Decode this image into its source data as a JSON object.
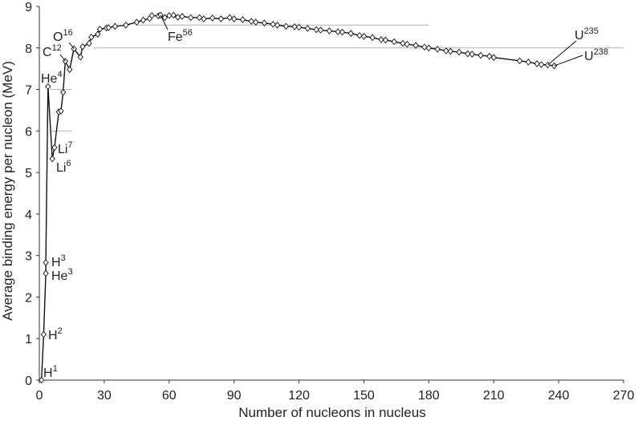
{
  "chart_data": {
    "type": "line",
    "title": "",
    "xlabel": "Number of nucleons in nucleus",
    "ylabel": "Average binding energy per nucleon (MeV)",
    "xlim": [
      0,
      270
    ],
    "ylim": [
      0,
      9
    ],
    "xticks": [
      "0",
      "30",
      "60",
      "90",
      "120",
      "150",
      "180",
      "210",
      "240",
      "270"
    ],
    "yticks": [
      "0",
      "1",
      "2",
      "3",
      "4",
      "5",
      "6",
      "7",
      "8",
      "9"
    ],
    "grid": "horizontal",
    "reference_lines": [
      {
        "y": 8.55,
        "x_from": 45,
        "x_to": 180
      },
      {
        "y": 8.0,
        "x_from": 25,
        "x_to": 270
      },
      {
        "y": 7.0,
        "x_from": 5,
        "x_to": 15
      },
      {
        "y": 6.0,
        "x_from": 5,
        "x_to": 15
      }
    ],
    "series": [
      {
        "x": [
          1,
          2,
          3,
          3,
          4,
          6,
          7,
          9,
          10,
          11,
          12,
          14,
          16,
          19,
          20,
          23,
          24,
          27,
          28,
          31,
          32,
          35,
          40,
          45,
          48,
          51,
          52,
          55,
          56,
          58,
          60,
          62,
          64,
          66,
          70,
          74,
          76,
          80,
          84,
          88,
          90,
          94,
          98,
          100,
          104,
          108,
          110,
          114,
          118,
          120,
          124,
          128,
          130,
          134,
          138,
          140,
          144,
          148,
          150,
          154,
          158,
          160,
          164,
          168,
          170,
          174,
          178,
          180,
          184,
          188,
          190,
          194,
          198,
          200,
          204,
          208,
          210,
          222,
          226,
          230,
          232,
          235,
          238
        ],
        "y": [
          0,
          1.1,
          2.57,
          2.83,
          7.07,
          5.33,
          5.6,
          6.46,
          6.48,
          6.93,
          7.68,
          7.48,
          7.98,
          7.78,
          8.03,
          8.11,
          8.26,
          8.33,
          8.45,
          8.48,
          8.49,
          8.52,
          8.55,
          8.62,
          8.67,
          8.71,
          8.78,
          8.77,
          8.79,
          8.73,
          8.78,
          8.79,
          8.74,
          8.76,
          8.73,
          8.73,
          8.7,
          8.72,
          8.7,
          8.73,
          8.7,
          8.68,
          8.64,
          8.62,
          8.6,
          8.57,
          8.55,
          8.52,
          8.51,
          8.5,
          8.47,
          8.44,
          8.43,
          8.41,
          8.39,
          8.38,
          8.35,
          8.3,
          8.28,
          8.25,
          8.2,
          8.19,
          8.15,
          8.11,
          8.09,
          8.06,
          8.02,
          8.0,
          7.97,
          7.93,
          7.92,
          7.9,
          7.86,
          7.85,
          7.82,
          7.8,
          7.77,
          7.69,
          7.66,
          7.62,
          7.6,
          7.59,
          7.57
        ]
      }
    ],
    "annotations": [
      {
        "base": "H",
        "sup": "1",
        "x": 1,
        "y": 0
      },
      {
        "base": "H",
        "sup": "2",
        "x": 2,
        "y": 1.1
      },
      {
        "base": "He",
        "sup": "3",
        "x": 3,
        "y": 2.57
      },
      {
        "base": "H",
        "sup": "3",
        "x": 3,
        "y": 2.83
      },
      {
        "base": "Li",
        "sup": "6",
        "x": 6,
        "y": 5.33
      },
      {
        "base": "Li",
        "sup": "7",
        "x": 7,
        "y": 5.6
      },
      {
        "base": "He",
        "sup": "4",
        "x": 4,
        "y": 7.07
      },
      {
        "base": "C",
        "sup": "12",
        "x": 12,
        "y": 7.68
      },
      {
        "base": "O",
        "sup": "16",
        "x": 16,
        "y": 7.98
      },
      {
        "base": "Fe",
        "sup": "56",
        "x": 56,
        "y": 8.79
      },
      {
        "base": "U",
        "sup": "235",
        "x": 235,
        "y": 7.59
      },
      {
        "base": "U",
        "sup": "238",
        "x": 238,
        "y": 7.57
      }
    ],
    "colors": {
      "line": "#111111",
      "marker_fill": "#ffffff",
      "grid": "#b0b0b0",
      "axis": "#333333"
    }
  }
}
